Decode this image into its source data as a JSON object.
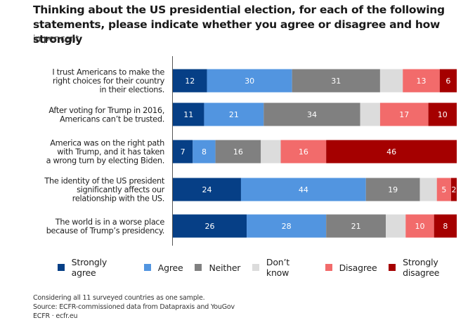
{
  "chart_data": {
    "type": "bar",
    "orientation": "horizontal",
    "stacked": true,
    "title": "Thinking about the US presidential election, for each of the following statements, please indicate whether you agree or disagree and how strongly",
    "subtitle": "in per cent",
    "xlabel": "",
    "ylabel": "",
    "xlim": [
      0,
      100
    ],
    "grid": false,
    "legend_position": "bottom",
    "categories": [
      [
        "I trust Americans to make the",
        "right choices for their country",
        "in their elections."
      ],
      [
        "After voting for Trump in 2016,",
        "Americans can’t be trusted."
      ],
      [
        "America was on the right path",
        "with Trump, and it has taken",
        "a wrong turn by electing Biden."
      ],
      [
        "The identity of the US president",
        "significantly affects our",
        "relationship with the US."
      ],
      [
        "The world is in a worse place",
        "because of Trump’s presidency."
      ]
    ],
    "series": [
      {
        "name": "Strongly agree",
        "color": "#063f86",
        "values": [
          12,
          11,
          7,
          24,
          26
        ],
        "labels": [
          "12",
          "11",
          "7",
          "24",
          "26"
        ]
      },
      {
        "name": "Agree",
        "color": "#5295e0",
        "values": [
          30,
          21,
          8,
          44,
          28
        ],
        "labels": [
          "30",
          "21",
          "8",
          "44",
          "28"
        ]
      },
      {
        "name": "Neither",
        "color": "#808080",
        "values": [
          31,
          34,
          16,
          19,
          21
        ],
        "labels": [
          "31",
          "34",
          "16",
          "19",
          "21"
        ]
      },
      {
        "name": "Don’t know",
        "color": "#dcdcdc",
        "values": [
          8,
          7,
          7,
          6,
          7
        ],
        "labels": [
          "",
          "",
          "",
          "",
          ""
        ]
      },
      {
        "name": "Disagree",
        "color": "#f26b6b",
        "values": [
          13,
          17,
          16,
          5,
          10
        ],
        "labels": [
          "13",
          "17",
          "16",
          "5",
          "10"
        ]
      },
      {
        "name": "Strongly disagree",
        "color": "#a50000",
        "values": [
          6,
          10,
          46,
          2,
          8
        ],
        "labels": [
          "6",
          "10",
          "46",
          "2",
          "8"
        ]
      }
    ]
  },
  "footer": {
    "note": "Considering all 11 surveyed countries as one sample.",
    "source": "Source: ECFR-commissioned data from Datapraxis and YouGov",
    "credit": "ECFR · ecfr.eu"
  }
}
